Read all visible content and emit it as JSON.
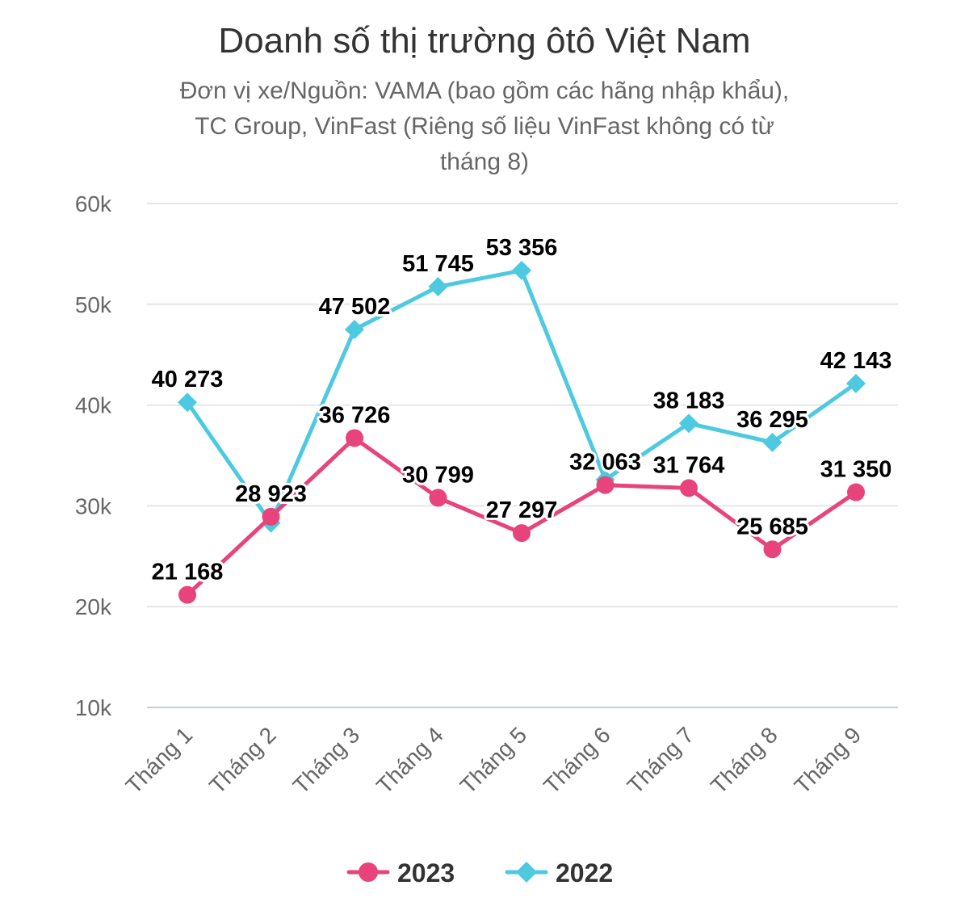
{
  "chart_data": {
    "type": "line",
    "title": "Doanh số thị trường ôtô Việt Nam",
    "subtitle_lines": [
      "Đơn vị xe/Nguồn: VAMA (bao gồm các hãng nhập khẩu),",
      "TC Group, VinFast (Riêng số liệu VinFast không có từ",
      "tháng 8)"
    ],
    "categories": [
      "Tháng 1",
      "Tháng 2",
      "Tháng 3",
      "Tháng 4",
      "Tháng 5",
      "Tháng 6",
      "Tháng 7",
      "Tháng 8",
      "Tháng 9"
    ],
    "ylim": [
      10000,
      60000
    ],
    "yticks": [
      {
        "value": 10000,
        "label": "10k"
      },
      {
        "value": 20000,
        "label": "20k"
      },
      {
        "value": 30000,
        "label": "30k"
      },
      {
        "value": 40000,
        "label": "40k"
      },
      {
        "value": 50000,
        "label": "50k"
      },
      {
        "value": 60000,
        "label": "60k"
      }
    ],
    "grid": true,
    "legend_position": "bottom-center",
    "series": [
      {
        "name": "2022",
        "color": "#4dc9e0",
        "marker": "diamond",
        "values": [
          40273,
          28300,
          47502,
          51745,
          53356,
          32600,
          38183,
          36295,
          42143
        ],
        "labels": [
          "40 273",
          "",
          "47 502",
          "51 745",
          "53 356",
          "",
          "38 183",
          "36 295",
          "42 143"
        ]
      },
      {
        "name": "2023",
        "color": "#e8437a",
        "marker": "circle",
        "values": [
          21168,
          28923,
          36726,
          30799,
          27297,
          32063,
          31764,
          25685,
          31350
        ],
        "labels": [
          "21 168",
          "28 923",
          "36 726",
          "30 799",
          "27 297",
          "32 063",
          "31 764",
          "25 685",
          "31 350"
        ]
      }
    ],
    "legend_order": [
      "2023",
      "2022"
    ]
  }
}
